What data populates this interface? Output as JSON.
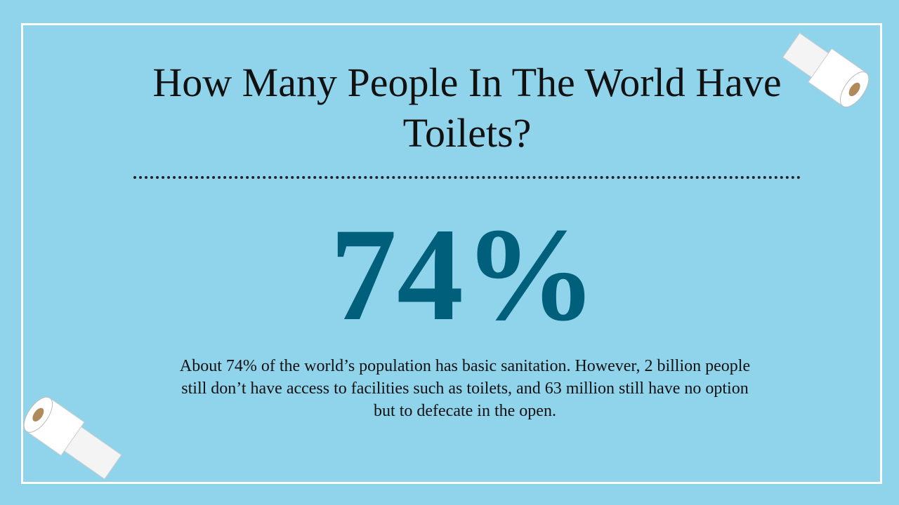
{
  "title": "How Many People In The World Have Toilets?",
  "stat": "74%",
  "body": "About 74% of the world’s population has basic sanitation. However, 2 billion people still don’t have access to facilities such as toilets, and 63 million still have no option but to defecate in the open."
}
